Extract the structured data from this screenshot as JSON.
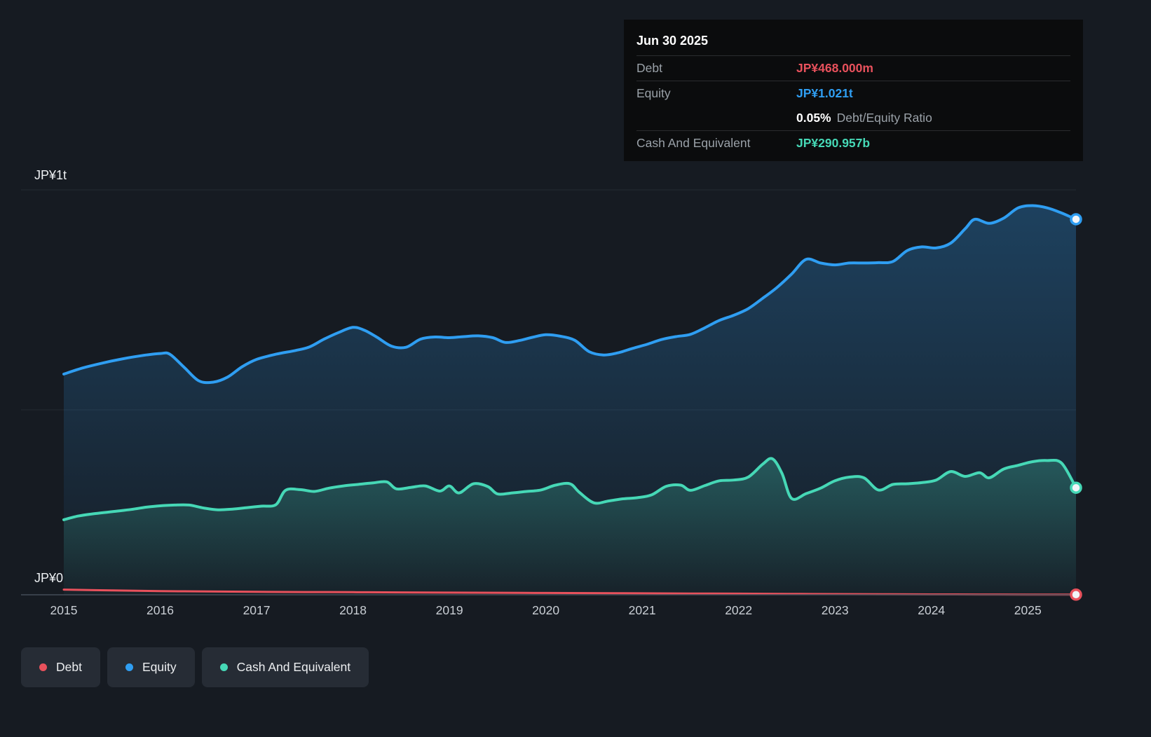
{
  "tooltip": {
    "date": "Jun 30 2025",
    "rows": [
      {
        "name": "debt",
        "label": "Debt",
        "value": "JP¥468.000m",
        "color": "#e8515c",
        "divider": true
      },
      {
        "name": "equity",
        "label": "Equity",
        "value": "JP¥1.021t",
        "color": "#2f9ef2",
        "divider": true
      },
      {
        "name": "debt-equity-ratio",
        "label": "",
        "value": "0.05%",
        "suffix": "Debt/Equity Ratio",
        "color": "#ffffff",
        "divider": false
      },
      {
        "name": "cash-and-equivalent",
        "label": "Cash And Equivalent",
        "value": "JP¥290.957b",
        "color": "#46d8b6",
        "divider": true
      }
    ]
  },
  "axis": {
    "y_top": "JP¥1t",
    "y_bottom": "JP¥0",
    "x_ticks": [
      "2015",
      "2016",
      "2017",
      "2018",
      "2019",
      "2020",
      "2021",
      "2022",
      "2023",
      "2024",
      "2025"
    ]
  },
  "legend": [
    {
      "label": "Debt",
      "color": "#e8515c"
    },
    {
      "label": "Equity",
      "color": "#2f9ef2"
    },
    {
      "label": "Cash And Equivalent",
      "color": "#46d8b6"
    }
  ],
  "chart_data": {
    "type": "area",
    "title": "",
    "unit": "JP¥ trillions",
    "x_range": [
      2015,
      2025.5
    ],
    "ylim": [
      0,
      1.1
    ],
    "y_ticks": [
      "JP¥1t",
      "JP¥0"
    ],
    "grid": true,
    "legend_position": "bottom-left",
    "series": [
      {
        "name": "Equity",
        "color": "#2f9ef2",
        "latest_label": "JP¥1.021t",
        "x": [
          2015.0,
          2015.2,
          2015.4,
          2015.6,
          2015.8,
          2016.0,
          2016.1,
          2016.25,
          2016.4,
          2016.55,
          2016.7,
          2016.85,
          2017.0,
          2017.2,
          2017.4,
          2017.55,
          2017.7,
          2017.85,
          2018.0,
          2018.12,
          2018.25,
          2018.4,
          2018.55,
          2018.7,
          2018.85,
          2019.0,
          2019.15,
          2019.3,
          2019.45,
          2019.58,
          2019.72,
          2019.86,
          2020.0,
          2020.15,
          2020.3,
          2020.45,
          2020.6,
          2020.75,
          2020.9,
          2021.05,
          2021.2,
          2021.35,
          2021.5,
          2021.65,
          2021.8,
          2021.95,
          2022.1,
          2022.25,
          2022.4,
          2022.55,
          2022.7,
          2022.85,
          2023.0,
          2023.15,
          2023.3,
          2023.45,
          2023.6,
          2023.75,
          2023.9,
          2024.05,
          2024.2,
          2024.35,
          2024.45,
          2024.6,
          2024.75,
          2024.9,
          2025.05,
          2025.2,
          2025.35,
          2025.5
        ],
        "values": [
          0.6,
          0.617,
          0.63,
          0.641,
          0.65,
          0.656,
          0.654,
          0.618,
          0.582,
          0.578,
          0.592,
          0.62,
          0.64,
          0.654,
          0.664,
          0.674,
          0.695,
          0.713,
          0.727,
          0.719,
          0.7,
          0.676,
          0.673,
          0.695,
          0.701,
          0.699,
          0.702,
          0.704,
          0.699,
          0.686,
          0.691,
          0.7,
          0.707,
          0.703,
          0.692,
          0.661,
          0.652,
          0.658,
          0.67,
          0.681,
          0.694,
          0.702,
          0.708,
          0.726,
          0.746,
          0.76,
          0.778,
          0.806,
          0.836,
          0.872,
          0.912,
          0.902,
          0.897,
          0.902,
          0.902,
          0.903,
          0.906,
          0.936,
          0.946,
          0.943,
          0.956,
          0.995,
          1.021,
          1.01,
          1.024,
          1.052,
          1.058,
          1.052,
          1.038,
          1.021
        ]
      },
      {
        "name": "Cash And Equivalent",
        "color": "#46d8b6",
        "latest_label": "JP¥290.957b",
        "x": [
          2015.0,
          2015.15,
          2015.3,
          2015.5,
          2015.7,
          2015.85,
          2016.0,
          2016.15,
          2016.3,
          2016.45,
          2016.6,
          2016.75,
          2016.9,
          2017.05,
          2017.2,
          2017.3,
          2017.45,
          2017.6,
          2017.75,
          2017.9,
          2018.05,
          2018.2,
          2018.35,
          2018.45,
          2018.6,
          2018.75,
          2018.9,
          2019.0,
          2019.1,
          2019.25,
          2019.4,
          2019.5,
          2019.65,
          2019.8,
          2019.95,
          2020.1,
          2020.25,
          2020.35,
          2020.5,
          2020.65,
          2020.8,
          2020.95,
          2021.1,
          2021.25,
          2021.4,
          2021.5,
          2021.65,
          2021.8,
          2021.95,
          2022.1,
          2022.25,
          2022.35,
          2022.45,
          2022.55,
          2022.7,
          2022.85,
          2023.0,
          2023.15,
          2023.3,
          2023.45,
          2023.6,
          2023.75,
          2023.9,
          2024.05,
          2024.2,
          2024.35,
          2024.5,
          2024.6,
          2024.75,
          2024.9,
          2025.05,
          2025.2,
          2025.35,
          2025.5
        ],
        "values": [
          0.204,
          0.214,
          0.22,
          0.226,
          0.232,
          0.238,
          0.242,
          0.244,
          0.244,
          0.236,
          0.231,
          0.233,
          0.237,
          0.241,
          0.245,
          0.284,
          0.286,
          0.281,
          0.29,
          0.296,
          0.3,
          0.304,
          0.307,
          0.288,
          0.292,
          0.296,
          0.282,
          0.296,
          0.277,
          0.302,
          0.294,
          0.274,
          0.277,
          0.281,
          0.285,
          0.298,
          0.302,
          0.278,
          0.25,
          0.255,
          0.261,
          0.264,
          0.272,
          0.295,
          0.298,
          0.284,
          0.297,
          0.31,
          0.312,
          0.32,
          0.355,
          0.37,
          0.33,
          0.262,
          0.275,
          0.29,
          0.31,
          0.32,
          0.318,
          0.285,
          0.3,
          0.302,
          0.305,
          0.312,
          0.335,
          0.322,
          0.332,
          0.318,
          0.342,
          0.352,
          0.362,
          0.365,
          0.358,
          0.291
        ]
      },
      {
        "name": "Debt",
        "color": "#e8515c",
        "latest_label": "JP¥468.000m",
        "x": [
          2015.0,
          2015.5,
          2016.0,
          2016.5,
          2017.0,
          2017.5,
          2018.0,
          2018.5,
          2019.0,
          2019.5,
          2020.0,
          2020.5,
          2021.0,
          2021.5,
          2022.0,
          2022.5,
          2023.0,
          2023.5,
          2024.0,
          2024.5,
          2025.0,
          2025.5
        ],
        "values": [
          0.014,
          0.012,
          0.01,
          0.009,
          0.008,
          0.0075,
          0.007,
          0.0065,
          0.006,
          0.0055,
          0.005,
          0.0045,
          0.004,
          0.0035,
          0.003,
          0.0025,
          0.002,
          0.0015,
          0.001,
          0.0008,
          0.0006,
          0.000468
        ]
      }
    ]
  }
}
